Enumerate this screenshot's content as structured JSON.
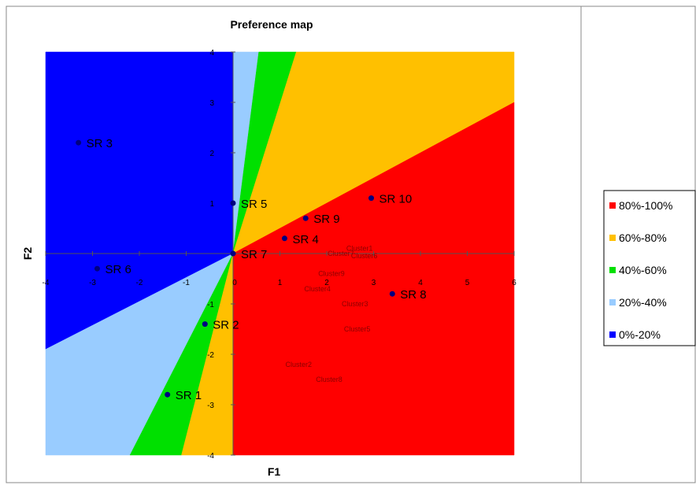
{
  "chart_data": {
    "type": "scatter",
    "title": "Preference map",
    "xlabel": "F1",
    "ylabel": "F2",
    "xlim": [
      -4,
      6
    ],
    "ylim": [
      -4,
      4
    ],
    "x_ticks": [
      -4,
      -3,
      -2,
      -1,
      0,
      1,
      2,
      3,
      4,
      5,
      6
    ],
    "y_ticks": [
      -4,
      -3,
      -2,
      -1,
      0,
      1,
      2,
      3,
      4
    ],
    "grid": false,
    "legend_position": "right",
    "legend": [
      {
        "label": "80%-100%",
        "color": "#ff0000"
      },
      {
        "label": "60%-80%",
        "color": "#ffc000"
      },
      {
        "label": "40%-60%",
        "color": "#00e000"
      },
      {
        "label": "20%-40%",
        "color": "#99ccff"
      },
      {
        "label": "0%-20%",
        "color": "#0000ff"
      }
    ],
    "regions": [
      {
        "label": "0%-20%",
        "color": "#0000ff",
        "polygon": [
          [
            -4,
            4
          ],
          [
            0,
            4
          ],
          [
            0,
            0
          ],
          [
            -4,
            -1.9
          ]
        ]
      },
      {
        "label": "20%-40%",
        "color": "#99ccff",
        "polygon": [
          [
            0,
            4
          ],
          [
            0.55,
            4
          ],
          [
            0,
            0
          ],
          [
            -2.2,
            -4
          ],
          [
            -4,
            -4
          ],
          [
            -4,
            -1.9
          ],
          [
            0,
            0
          ]
        ]
      },
      {
        "label": "40%-60%",
        "color": "#00e000",
        "polygon": [
          [
            0.55,
            4
          ],
          [
            1.35,
            4
          ],
          [
            0,
            0
          ],
          [
            -1.1,
            -4
          ],
          [
            -2.2,
            -4
          ],
          [
            0,
            0
          ]
        ]
      },
      {
        "label": "60%-80%",
        "color": "#ffc000",
        "polygon": [
          [
            1.35,
            4
          ],
          [
            6,
            4
          ],
          [
            6,
            3
          ],
          [
            0,
            0
          ],
          [
            0,
            -4
          ],
          [
            -1.1,
            -4
          ],
          [
            0,
            0
          ]
        ]
      },
      {
        "label": "80%-100%",
        "color": "#ff0000",
        "polygon": [
          [
            6,
            3
          ],
          [
            6,
            -4
          ],
          [
            0,
            -4
          ],
          [
            0,
            0
          ]
        ]
      }
    ],
    "points": [
      {
        "label": "SR 1",
        "x": -1.4,
        "y": -2.8
      },
      {
        "label": "SR 2",
        "x": -0.6,
        "y": -1.4
      },
      {
        "label": "SR 3",
        "x": -3.3,
        "y": 2.2
      },
      {
        "label": "SR 4",
        "x": 1.1,
        "y": 0.3
      },
      {
        "label": "SR 5",
        "x": 0.0,
        "y": 1.0
      },
      {
        "label": "SR 6",
        "x": -2.9,
        "y": -0.3
      },
      {
        "label": "SR 7",
        "x": 0.0,
        "y": 0.0
      },
      {
        "label": "SR 8",
        "x": 3.4,
        "y": -0.8
      },
      {
        "label": "SR 9",
        "x": 1.55,
        "y": 0.7
      },
      {
        "label": "SR 10",
        "x": 2.95,
        "y": 1.1
      }
    ],
    "annotations": [
      {
        "label": "Cluster1",
        "x": 2.7,
        "y": 0.1
      },
      {
        "label": "Cluster7",
        "x": 2.3,
        "y": 0.0
      },
      {
        "label": "Cluster6",
        "x": 2.8,
        "y": -0.05
      },
      {
        "label": "Cluster9",
        "x": 2.1,
        "y": -0.4
      },
      {
        "label": "Cluster4",
        "x": 1.8,
        "y": -0.7
      },
      {
        "label": "Cluster3",
        "x": 2.6,
        "y": -1.0
      },
      {
        "label": "Cluster5",
        "x": 2.65,
        "y": -1.5
      },
      {
        "label": "Cluster2",
        "x": 1.4,
        "y": -2.2
      },
      {
        "label": "Cluster8",
        "x": 2.05,
        "y": -2.5
      }
    ]
  }
}
